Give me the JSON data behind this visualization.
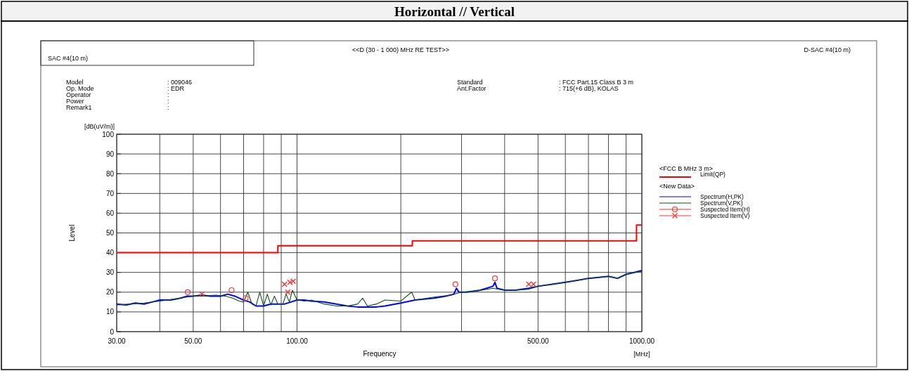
{
  "chart_data": {
    "type": "line",
    "title": "Horizontal // Vertical",
    "subtitle": "<<D (30 - 1 000) MHz RE TEST>>",
    "xlabel": "Frequency",
    "ylabel": "Level",
    "legend_title": "<FCC B MHz 3 m>",
    "annotations": [
      "SAC #4(10 m)",
      "D-SAC #4(10 m)",
      "Model",
      ": 009046",
      "Op. Mode",
      ": EDR",
      "Operator",
      ":",
      "Power",
      ":",
      "Remark1",
      ":",
      "Standard",
      ": FCC Part.15 Class B 3 m",
      "Ant.Factor",
      ": 715(+6 dB), KOLAS",
      "<New Data>",
      "[dB(uV/m)]",
      "[MHz]"
    ],
    "log": "x",
    "grid": true,
    "legend": "right",
    "line_style": "solid",
    "xlim": [
      30,
      1000
    ],
    "ylim": [
      0,
      100
    ],
    "xticks": [
      {
        "value": 30,
        "label": "30.00"
      },
      {
        "value": 40,
        "label": null
      },
      {
        "value": 50,
        "label": "50.00"
      },
      {
        "value": 60,
        "label": null
      },
      {
        "value": 70,
        "label": null
      },
      {
        "value": 80,
        "label": null
      },
      {
        "value": 90,
        "label": null
      },
      {
        "value": 100,
        "label": "100.00"
      },
      {
        "value": 200,
        "label": null
      },
      {
        "value": 300,
        "label": null
      },
      {
        "value": 400,
        "label": null
      },
      {
        "value": 500,
        "label": "500.00"
      },
      {
        "value": 600,
        "label": null
      },
      {
        "value": 700,
        "label": null
      },
      {
        "value": 800,
        "label": null
      },
      {
        "value": 900,
        "label": null
      },
      {
        "value": 1000,
        "label": "1000.00"
      }
    ],
    "yticks": [
      0,
      10,
      20,
      30,
      40,
      50,
      60,
      70,
      80,
      90,
      100
    ],
    "series": [
      {
        "name": "Limit(QP)",
        "type": "step",
        "color": "#ff0000",
        "x": [
          30,
          88,
          216,
          965,
          1000
        ],
        "values": [
          40,
          43.5,
          46,
          54,
          54
        ]
      },
      {
        "name": "Spectrum(H,PK)",
        "color": "#0000ff",
        "x": [
          30,
          32,
          34,
          36,
          38,
          40,
          43,
          46,
          48,
          50,
          53,
          56,
          60,
          63,
          66,
          70,
          73,
          76,
          80,
          84,
          88,
          92,
          96,
          100,
          105,
          110,
          120,
          130,
          140,
          150,
          160,
          170,
          180,
          200,
          220,
          250,
          270,
          285,
          290,
          295,
          310,
          340,
          370,
          375,
          380,
          400,
          430,
          470,
          500,
          550,
          600,
          650,
          700,
          750,
          800,
          850,
          900,
          950,
          1000
        ],
        "values": [
          14,
          13.5,
          14.5,
          14,
          15,
          16,
          16,
          17,
          18,
          18,
          18.5,
          18,
          18,
          19,
          18,
          16,
          15,
          13,
          13,
          14,
          14,
          14,
          15,
          16,
          16,
          15.5,
          15,
          14,
          13,
          12.5,
          12.5,
          12.5,
          13,
          14.5,
          16,
          17,
          18,
          19,
          22,
          20,
          20,
          21,
          23,
          25,
          22,
          21,
          21,
          22,
          23,
          24,
          25,
          26,
          27,
          27.5,
          28,
          27,
          29,
          30,
          31
        ]
      },
      {
        "name": "Spectrum(V,PK)",
        "color": "#0b4f17",
        "x": [
          30,
          33,
          36,
          40,
          44,
          48,
          50,
          54,
          58,
          62,
          65,
          68,
          70,
          72,
          74,
          76,
          78,
          80,
          82,
          84,
          86,
          88,
          91,
          93,
          95,
          97,
          100,
          105,
          110,
          115,
          120,
          130,
          140,
          150,
          155,
          160,
          170,
          180,
          200,
          215,
          220,
          250,
          280,
          300,
          330,
          370,
          400,
          430,
          470,
          500,
          550,
          600,
          650,
          700,
          750,
          800,
          850,
          900,
          950,
          1000
        ],
        "values": [
          13.5,
          14,
          14.5,
          15.5,
          16.5,
          17.5,
          18,
          18,
          18.5,
          18,
          17,
          15.5,
          15,
          20,
          14,
          13,
          20,
          13,
          19,
          13.5,
          18,
          14,
          14,
          19,
          15,
          21,
          16,
          15.5,
          16,
          15,
          14,
          13,
          13,
          14,
          17,
          13,
          14,
          16,
          15.5,
          20,
          16,
          17.5,
          18.5,
          20,
          20.5,
          22,
          21,
          21,
          21.5,
          23,
          24,
          25,
          26,
          27,
          27.5,
          28,
          27,
          29,
          30,
          30.5
        ]
      },
      {
        "name": "Suspected Item(H)",
        "type": "scatter",
        "marker": "circle",
        "color": "#ff3333",
        "x": [
          48.2,
          64.6,
          71,
          288,
          375
        ],
        "values": [
          20,
          21,
          17,
          24,
          27
        ]
      },
      {
        "name": "Suspected Item(V)",
        "type": "scatter",
        "marker": "cross",
        "color": "#ff3333",
        "x": [
          53,
          92,
          94,
          95.4,
          97.5,
          470,
          485
        ],
        "values": [
          19,
          24,
          20,
          25,
          25.5,
          24,
          24
        ]
      }
    ]
  }
}
